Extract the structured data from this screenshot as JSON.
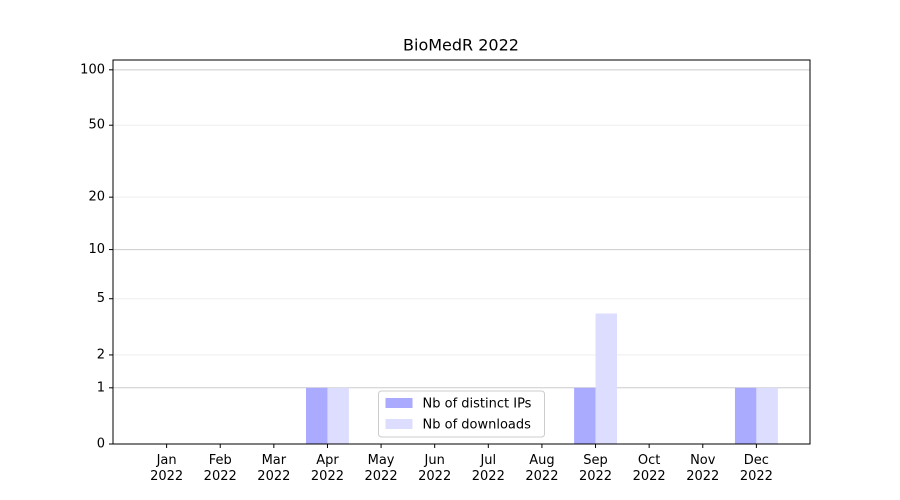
{
  "chart_data": {
    "type": "bar",
    "title": "BioMedR 2022",
    "categories": [
      "Jan\n2022",
      "Feb\n2022",
      "Mar\n2022",
      "Apr\n2022",
      "May\n2022",
      "Jun\n2022",
      "Jul\n2022",
      "Aug\n2022",
      "Sep\n2022",
      "Oct\n2022",
      "Nov\n2022",
      "Dec\n2022"
    ],
    "series": [
      {
        "name": "Nb of distinct IPs",
        "color": "#aaaaff",
        "values": [
          0,
          0,
          0,
          1,
          0,
          0,
          0,
          0,
          1,
          0,
          0,
          1
        ]
      },
      {
        "name": "Nb of downloads",
        "color": "#ddddff",
        "values": [
          0,
          0,
          0,
          1,
          0,
          0,
          0,
          0,
          4,
          0,
          0,
          1
        ]
      }
    ],
    "yscale": "symlog",
    "ylim": [
      0,
      113
    ],
    "yticks": [
      0,
      1,
      2,
      5,
      10,
      20,
      50,
      100
    ],
    "grid": true,
    "legend": "lower center"
  }
}
